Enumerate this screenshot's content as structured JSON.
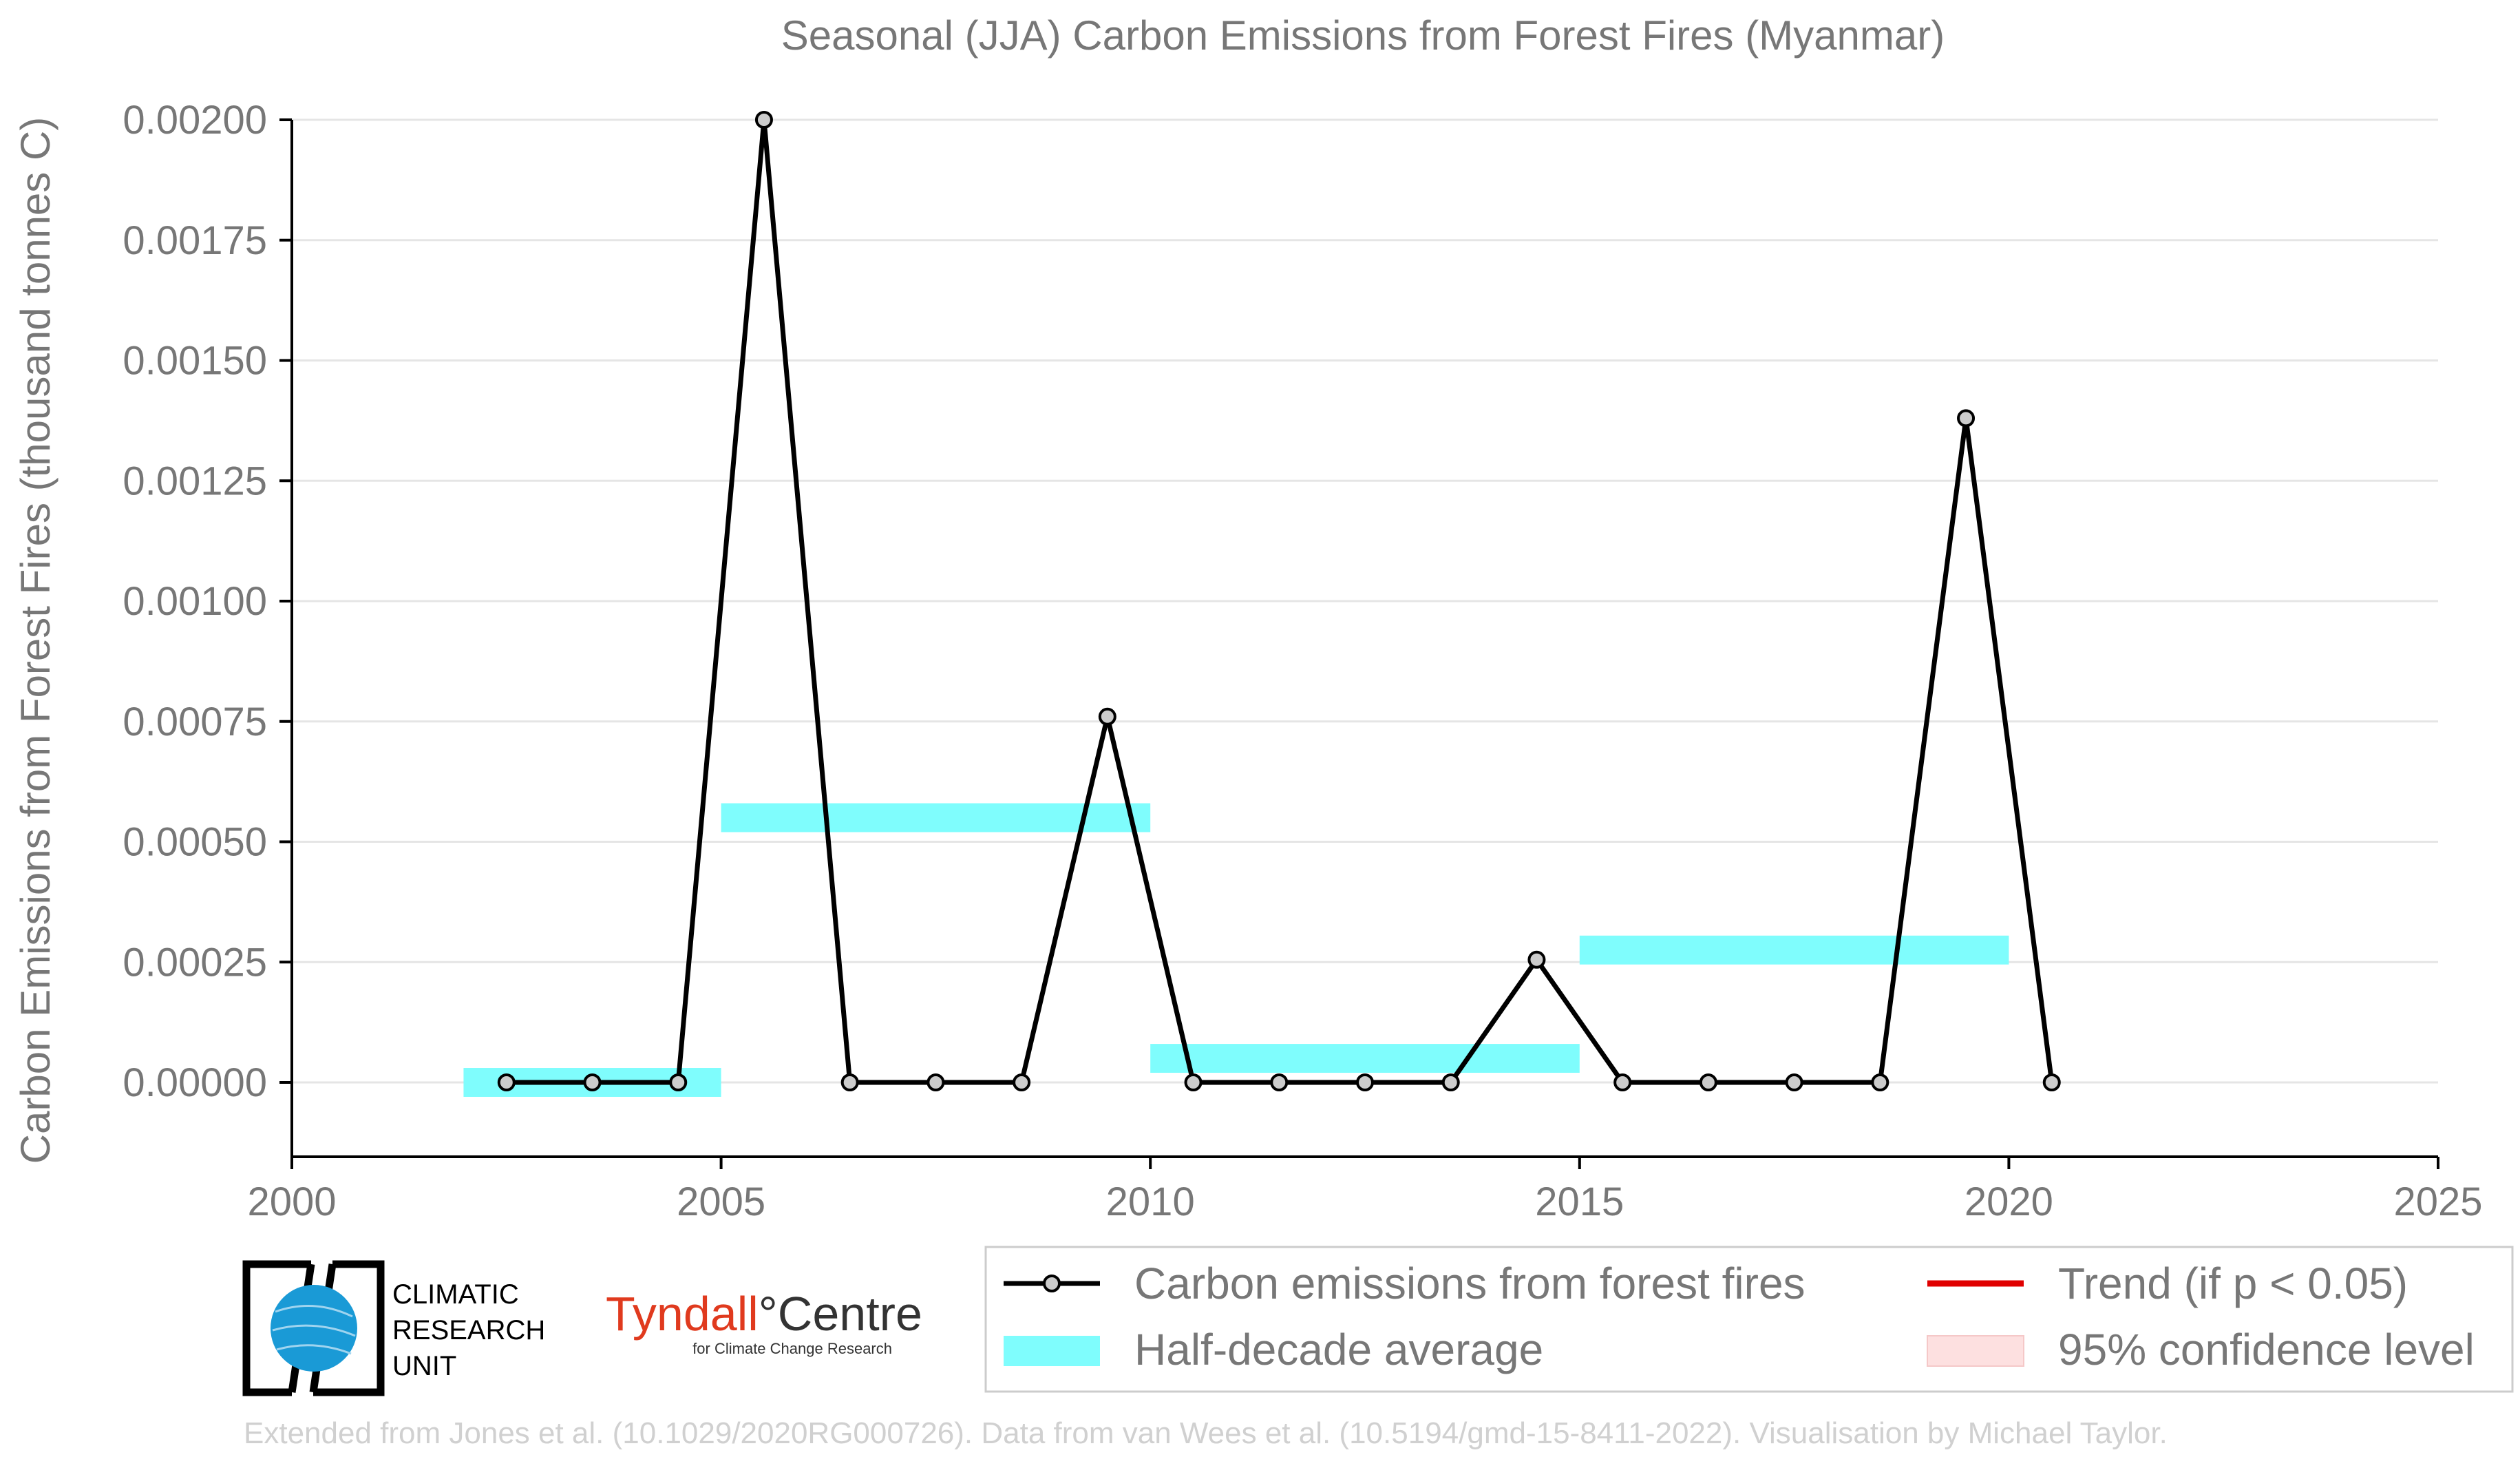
{
  "chart_data": {
    "type": "line",
    "title": "Seasonal (JJA) Carbon Emissions from Forest Fires (Myanmar)",
    "xlabel": "",
    "ylabel": "Carbon Emissions from Forest Fires (thousand tonnes C)",
    "xlim": [
      2000,
      2025
    ],
    "ylim": [
      -0.00016,
      0.002
    ],
    "x_ticks": [
      "2000",
      "2005",
      "2010",
      "2015",
      "2020",
      "2025"
    ],
    "y_ticks": [
      "0.00000",
      "0.00025",
      "0.00050",
      "0.00075",
      "0.00100",
      "0.00125",
      "0.00150",
      "0.00175",
      "0.00200"
    ],
    "grid": "horizontal",
    "legend_position": "bottom-right",
    "series": [
      {
        "name": "Carbon emissions from forest fires",
        "color": "#000000",
        "x": [
          2002.5,
          2003.5,
          2004.5,
          2005.5,
          2006.5,
          2007.5,
          2008.5,
          2009.5,
          2010.5,
          2011.5,
          2012.5,
          2013.5,
          2014.5,
          2015.5,
          2016.5,
          2017.5,
          2018.5,
          2019.5,
          2020.5
        ],
        "values": [
          0,
          0,
          0,
          0.002,
          0,
          0,
          0,
          0.00076,
          0,
          0,
          0,
          0,
          0.000255,
          0,
          0,
          0,
          0,
          0.00138,
          0
        ]
      }
    ],
    "half_decade_average": {
      "name": "Half-decade average",
      "color": "#7ffdfd",
      "segments": [
        {
          "x_start": 2002,
          "x_end": 2005,
          "value": 0.0
        },
        {
          "x_start": 2005,
          "x_end": 2010,
          "value": 0.00055
        },
        {
          "x_start": 2010,
          "x_end": 2015,
          "value": 5e-05
        },
        {
          "x_start": 2015,
          "x_end": 2020,
          "value": 0.000275
        }
      ]
    },
    "legend": [
      {
        "label": "Carbon emissions from forest fires",
        "kind": "line-marker",
        "color": "#000000"
      },
      {
        "label": "Trend (if p < 0.05)",
        "kind": "line",
        "color": "#e00000"
      },
      {
        "label": "Half-decade average",
        "kind": "band",
        "color": "#7ffdfd"
      },
      {
        "label": "95% confidence level",
        "kind": "band",
        "color": "#fde0e0"
      }
    ]
  },
  "logos": {
    "cru": {
      "line1": "CLIMATIC",
      "line2": "RESEARCH",
      "line3": "UNIT"
    },
    "tyndall": {
      "name_a": "Tyndall",
      "name_b": "°Centre",
      "subtitle": "for Climate Change Research"
    }
  },
  "credit": "Extended from Jones et al. (10.1029/2020RG000726). Data from van Wees et al. (10.5194/gmd-15-8411-2022). Visualisation by Michael Taylor."
}
